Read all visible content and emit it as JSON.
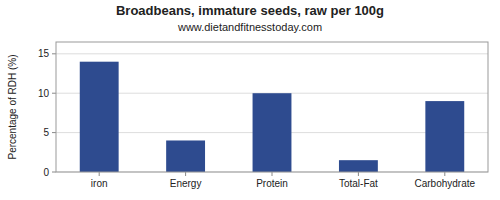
{
  "chart_data": {
    "type": "bar",
    "title": "Broadbeans, immature seeds, raw per 100g",
    "subtitle": "www.dietandfitnesstoday.com",
    "categories": [
      "iron",
      "Energy",
      "Protein",
      "Total-Fat",
      "Carbohydrate"
    ],
    "values": [
      14.0,
      4.0,
      10.0,
      1.5,
      9.0
    ],
    "color": "#2e4b8f",
    "ylabel": "Percentage of RDH (%)",
    "ylim": [
      0,
      16.5
    ],
    "yticks": [
      0,
      5,
      10,
      15
    ],
    "grid": true
  }
}
